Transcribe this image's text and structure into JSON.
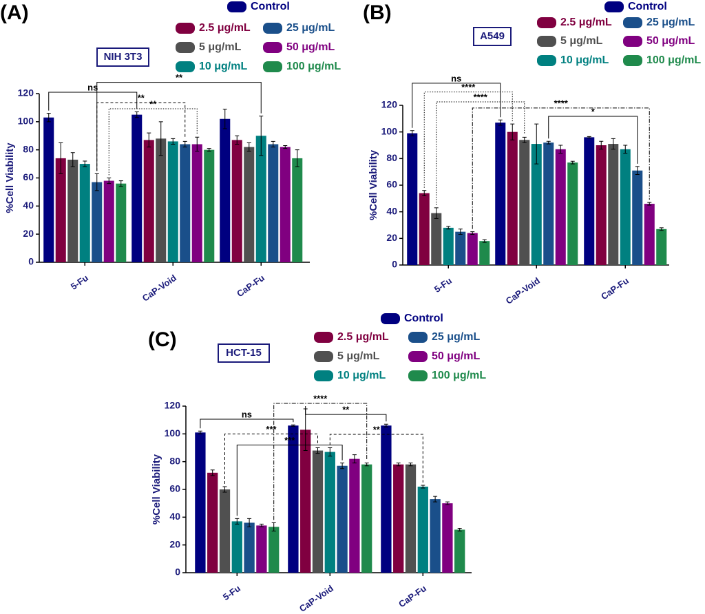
{
  "chart_data": [
    {
      "type": "bar",
      "panel_label": "(A)",
      "cell_line": "NIH 3T3",
      "y_label": "%Cell Viability",
      "categories": [
        "5-Fu",
        "CaP-Void",
        "CaP-Fu"
      ],
      "ylim": [
        0,
        120
      ],
      "yticks": [
        0,
        20,
        40,
        60,
        80,
        100,
        120
      ],
      "series": [
        {
          "name": "Control",
          "color": "#000080",
          "values": [
            103,
            105,
            102
          ],
          "errors": [
            3,
            2,
            7
          ]
        },
        {
          "name": "2.5 μg/mL",
          "color": "#800040",
          "values": [
            74,
            87,
            87
          ],
          "errors": [
            11,
            5,
            3
          ]
        },
        {
          "name": "5 μg/mL",
          "color": "#505050",
          "values": [
            73,
            88,
            82
          ],
          "errors": [
            5,
            12,
            3
          ]
        },
        {
          "name": "10 μg/mL",
          "color": "#008080",
          "values": [
            70,
            86,
            90
          ],
          "errors": [
            2,
            2,
            14
          ]
        },
        {
          "name": "25 μg/mL",
          "color": "#1a4f8a",
          "values": [
            57,
            84,
            84
          ],
          "errors": [
            6,
            2,
            2
          ]
        },
        {
          "name": "50 μg/mL",
          "color": "#800080",
          "values": [
            58,
            84,
            82
          ],
          "errors": [
            2,
            5,
            1
          ]
        },
        {
          "name": "100 μg/mL",
          "color": "#1f8a4c",
          "values": [
            56,
            80,
            74
          ],
          "errors": [
            2,
            1,
            6
          ]
        }
      ],
      "annotations": [
        "ns",
        "**",
        "**",
        "**"
      ]
    },
    {
      "type": "bar",
      "panel_label": "(B)",
      "cell_line": "A549",
      "y_label": "%Cell Viability",
      "categories": [
        "5-Fu",
        "CaP-Void",
        "CaP-Fu"
      ],
      "ylim": [
        0,
        120
      ],
      "yticks": [
        0,
        20,
        40,
        60,
        80,
        100,
        120
      ],
      "series": [
        {
          "name": "Control",
          "color": "#000080",
          "values": [
            99,
            107,
            96
          ],
          "errors": [
            2,
            2,
            0.5
          ]
        },
        {
          "name": "2.5 μg/mL",
          "color": "#800040",
          "values": [
            54,
            100,
            90
          ],
          "errors": [
            2,
            6,
            3
          ]
        },
        {
          "name": "5 μg/mL",
          "color": "#505050",
          "values": [
            39,
            94,
            91
          ],
          "errors": [
            4,
            2,
            4
          ]
        },
        {
          "name": "10 μg/mL",
          "color": "#008080",
          "values": [
            28,
            91,
            87
          ],
          "errors": [
            1,
            15,
            3
          ]
        },
        {
          "name": "25 μg/mL",
          "color": "#1a4f8a",
          "values": [
            25,
            92,
            71
          ],
          "errors": [
            2,
            1,
            3
          ]
        },
        {
          "name": "50 μg/mL",
          "color": "#800080",
          "values": [
            24,
            87,
            46
          ],
          "errors": [
            1,
            3,
            1
          ]
        },
        {
          "name": "100 μg/mL",
          "color": "#1f8a4c",
          "values": [
            18,
            77,
            27
          ],
          "errors": [
            1,
            1,
            1
          ]
        }
      ],
      "annotations": [
        "ns",
        "****",
        "****",
        "****",
        "*"
      ]
    },
    {
      "type": "bar",
      "panel_label": "(C)",
      "cell_line": "HCT-15",
      "y_label": "%Cell Viability",
      "categories": [
        "5-Fu",
        "CaP-Void",
        "CaP-Fu"
      ],
      "ylim": [
        0,
        120
      ],
      "yticks": [
        0,
        20,
        40,
        60,
        80,
        100,
        120
      ],
      "series": [
        {
          "name": "Control",
          "color": "#000080",
          "values": [
            101,
            106,
            106
          ],
          "errors": [
            1,
            0.5,
            1
          ]
        },
        {
          "name": "2.5 μg/mL",
          "color": "#800040",
          "values": [
            72,
            103,
            78
          ],
          "errors": [
            2,
            15,
            1
          ]
        },
        {
          "name": "5 μg/mL",
          "color": "#505050",
          "values": [
            60,
            88,
            78
          ],
          "errors": [
            2,
            2,
            1
          ]
        },
        {
          "name": "10 μg/mL",
          "color": "#008080",
          "values": [
            37,
            87,
            62
          ],
          "errors": [
            2,
            3,
            1
          ]
        },
        {
          "name": "25 μg/mL",
          "color": "#1a4f8a",
          "values": [
            36,
            77,
            53
          ],
          "errors": [
            3,
            2,
            2
          ]
        },
        {
          "name": "50 μg/mL",
          "color": "#800080",
          "values": [
            34,
            82,
            50
          ],
          "errors": [
            1,
            3,
            1
          ]
        },
        {
          "name": "100 μg/mL",
          "color": "#1f8a4c",
          "values": [
            33,
            78,
            31
          ],
          "errors": [
            3,
            1,
            1
          ]
        }
      ],
      "annotations": [
        "ns",
        "****",
        "***",
        "***",
        "**",
        "**"
      ]
    }
  ]
}
